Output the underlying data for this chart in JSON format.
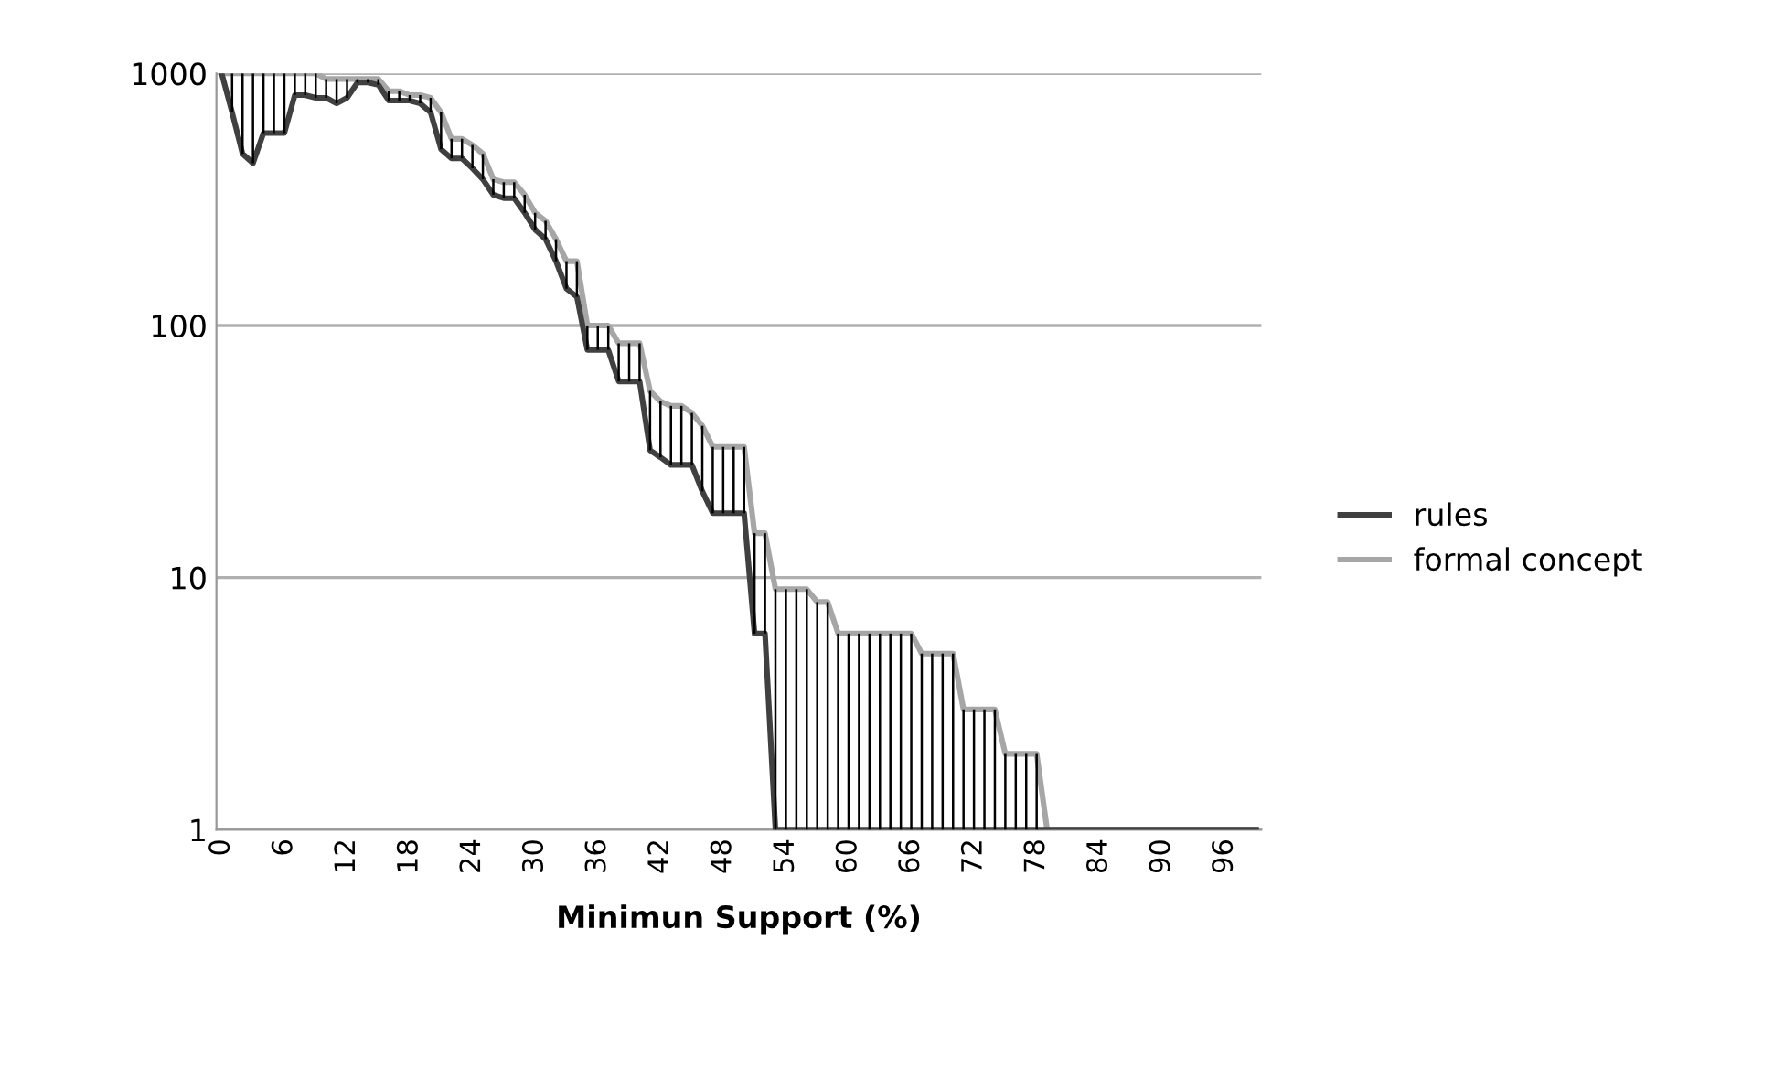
{
  "chart_data": {
    "type": "line",
    "xlabel": "Minimun Support (%)",
    "categories": [
      "0",
      null,
      null,
      null,
      null,
      null,
      "6",
      null,
      null,
      null,
      null,
      null,
      "12",
      null,
      null,
      null,
      null,
      null,
      "18",
      null,
      null,
      null,
      null,
      null,
      "24",
      null,
      null,
      null,
      null,
      null,
      "30",
      null,
      null,
      null,
      null,
      null,
      "36",
      null,
      null,
      null,
      null,
      null,
      "42",
      null,
      null,
      null,
      null,
      null,
      "48",
      null,
      null,
      null,
      null,
      null,
      "54",
      null,
      null,
      null,
      null,
      null,
      "60",
      null,
      null,
      null,
      null,
      null,
      "66",
      null,
      null,
      null,
      null,
      null,
      "72",
      null,
      null,
      null,
      null,
      null,
      "78",
      null,
      null,
      null,
      null,
      null,
      "84",
      null,
      null,
      null,
      null,
      null,
      "90",
      null,
      null,
      null,
      null,
      null,
      "96",
      null,
      null,
      null
    ],
    "series": [
      {
        "name": "rules",
        "color": "#404040",
        "values": [
          1000,
          700,
          480,
          440,
          580,
          580,
          580,
          820,
          820,
          800,
          800,
          760,
          800,
          920,
          920,
          900,
          780,
          780,
          780,
          760,
          700,
          500,
          460,
          460,
          420,
          380,
          330,
          320,
          320,
          280,
          240,
          220,
          180,
          140,
          130,
          80,
          80,
          80,
          60,
          60,
          60,
          32,
          30,
          28,
          28,
          28,
          22,
          18,
          18,
          18,
          18,
          6,
          6,
          1,
          1,
          1,
          1,
          1,
          1,
          1,
          1,
          1,
          1,
          1,
          1,
          1,
          1,
          1,
          1,
          1,
          1,
          1,
          1,
          1,
          1,
          1,
          1,
          1,
          1,
          1,
          1,
          1,
          1,
          1,
          1,
          1,
          1,
          1,
          1,
          1,
          1,
          1,
          1,
          1,
          1,
          1,
          1,
          1,
          1,
          1
        ],
        "errors": [
          null,
          [
            700,
            1000
          ],
          [
            480,
            1000
          ],
          [
            440,
            1000
          ],
          [
            580,
            1000
          ],
          [
            580,
            1000
          ],
          [
            580,
            1000
          ],
          [
            820,
            1000
          ],
          [
            820,
            1000
          ],
          [
            800,
            1000
          ],
          [
            800,
            950
          ],
          [
            760,
            950
          ],
          [
            800,
            950
          ],
          [
            920,
            950
          ],
          [
            920,
            950
          ],
          [
            900,
            950
          ],
          [
            780,
            850
          ],
          [
            780,
            850
          ],
          [
            780,
            820
          ],
          [
            760,
            820
          ],
          [
            700,
            800
          ],
          [
            500,
            700
          ],
          [
            460,
            550
          ],
          [
            460,
            550
          ],
          [
            420,
            520
          ],
          [
            380,
            480
          ],
          [
            330,
            380
          ],
          [
            320,
            370
          ],
          [
            320,
            370
          ],
          [
            280,
            330
          ],
          [
            240,
            280
          ],
          [
            220,
            260
          ],
          [
            180,
            220
          ],
          [
            140,
            180
          ],
          [
            130,
            180
          ],
          [
            80,
            100
          ],
          [
            80,
            100
          ],
          [
            80,
            100
          ],
          [
            60,
            85
          ],
          [
            60,
            85
          ],
          [
            60,
            85
          ],
          [
            32,
            55
          ],
          [
            30,
            50
          ],
          [
            28,
            48
          ],
          [
            28,
            48
          ],
          [
            28,
            45
          ],
          [
            22,
            40
          ],
          [
            18,
            33
          ],
          [
            18,
            33
          ],
          [
            18,
            33
          ],
          [
            18,
            33
          ],
          [
            6,
            15
          ],
          [
            6,
            15
          ],
          [
            1,
            9
          ],
          [
            1,
            9
          ],
          [
            1,
            9
          ],
          [
            1,
            9
          ],
          [
            1,
            8
          ],
          [
            1,
            8
          ],
          [
            1,
            6
          ],
          [
            1,
            6
          ],
          [
            1,
            6
          ],
          [
            1,
            6
          ],
          [
            1,
            6
          ],
          [
            1,
            6
          ],
          [
            1,
            6
          ],
          [
            1,
            6
          ],
          [
            1,
            5
          ],
          [
            1,
            5
          ],
          [
            1,
            5
          ],
          [
            1,
            5
          ],
          [
            1,
            3
          ],
          [
            1,
            3
          ],
          [
            1,
            3
          ],
          [
            1,
            3
          ],
          [
            1,
            2
          ],
          [
            1,
            2
          ],
          [
            1,
            2
          ],
          [
            1,
            2
          ],
          null,
          null,
          null,
          null,
          null,
          null,
          null,
          null,
          null,
          null,
          null,
          null,
          null,
          null,
          null,
          null,
          null,
          null,
          null,
          null,
          null
        ]
      },
      {
        "name": "formal concept",
        "color": "#a6a6a6",
        "values": [
          1000,
          1000,
          1000,
          1000,
          1000,
          1000,
          1000,
          1000,
          1000,
          1000,
          950,
          950,
          950,
          950,
          950,
          950,
          850,
          850,
          820,
          820,
          800,
          700,
          550,
          550,
          520,
          480,
          380,
          370,
          370,
          330,
          280,
          260,
          220,
          180,
          180,
          100,
          100,
          100,
          85,
          85,
          85,
          55,
          50,
          48,
          48,
          45,
          40,
          33,
          33,
          33,
          33,
          15,
          15,
          9,
          9,
          9,
          9,
          8,
          8,
          6,
          6,
          6,
          6,
          6,
          6,
          6,
          6,
          5,
          5,
          5,
          5,
          3,
          3,
          3,
          3,
          2,
          2,
          2,
          2,
          1,
          1,
          1,
          1,
          1,
          1,
          1,
          1,
          1,
          1,
          1,
          1,
          1,
          1,
          1,
          1,
          1,
          1,
          1,
          1,
          1
        ]
      }
    ],
    "log": true,
    "ylim": [
      1,
      1000
    ],
    "yticks": [
      1,
      10,
      100,
      1000
    ],
    "grid": "y",
    "legend": "right"
  }
}
